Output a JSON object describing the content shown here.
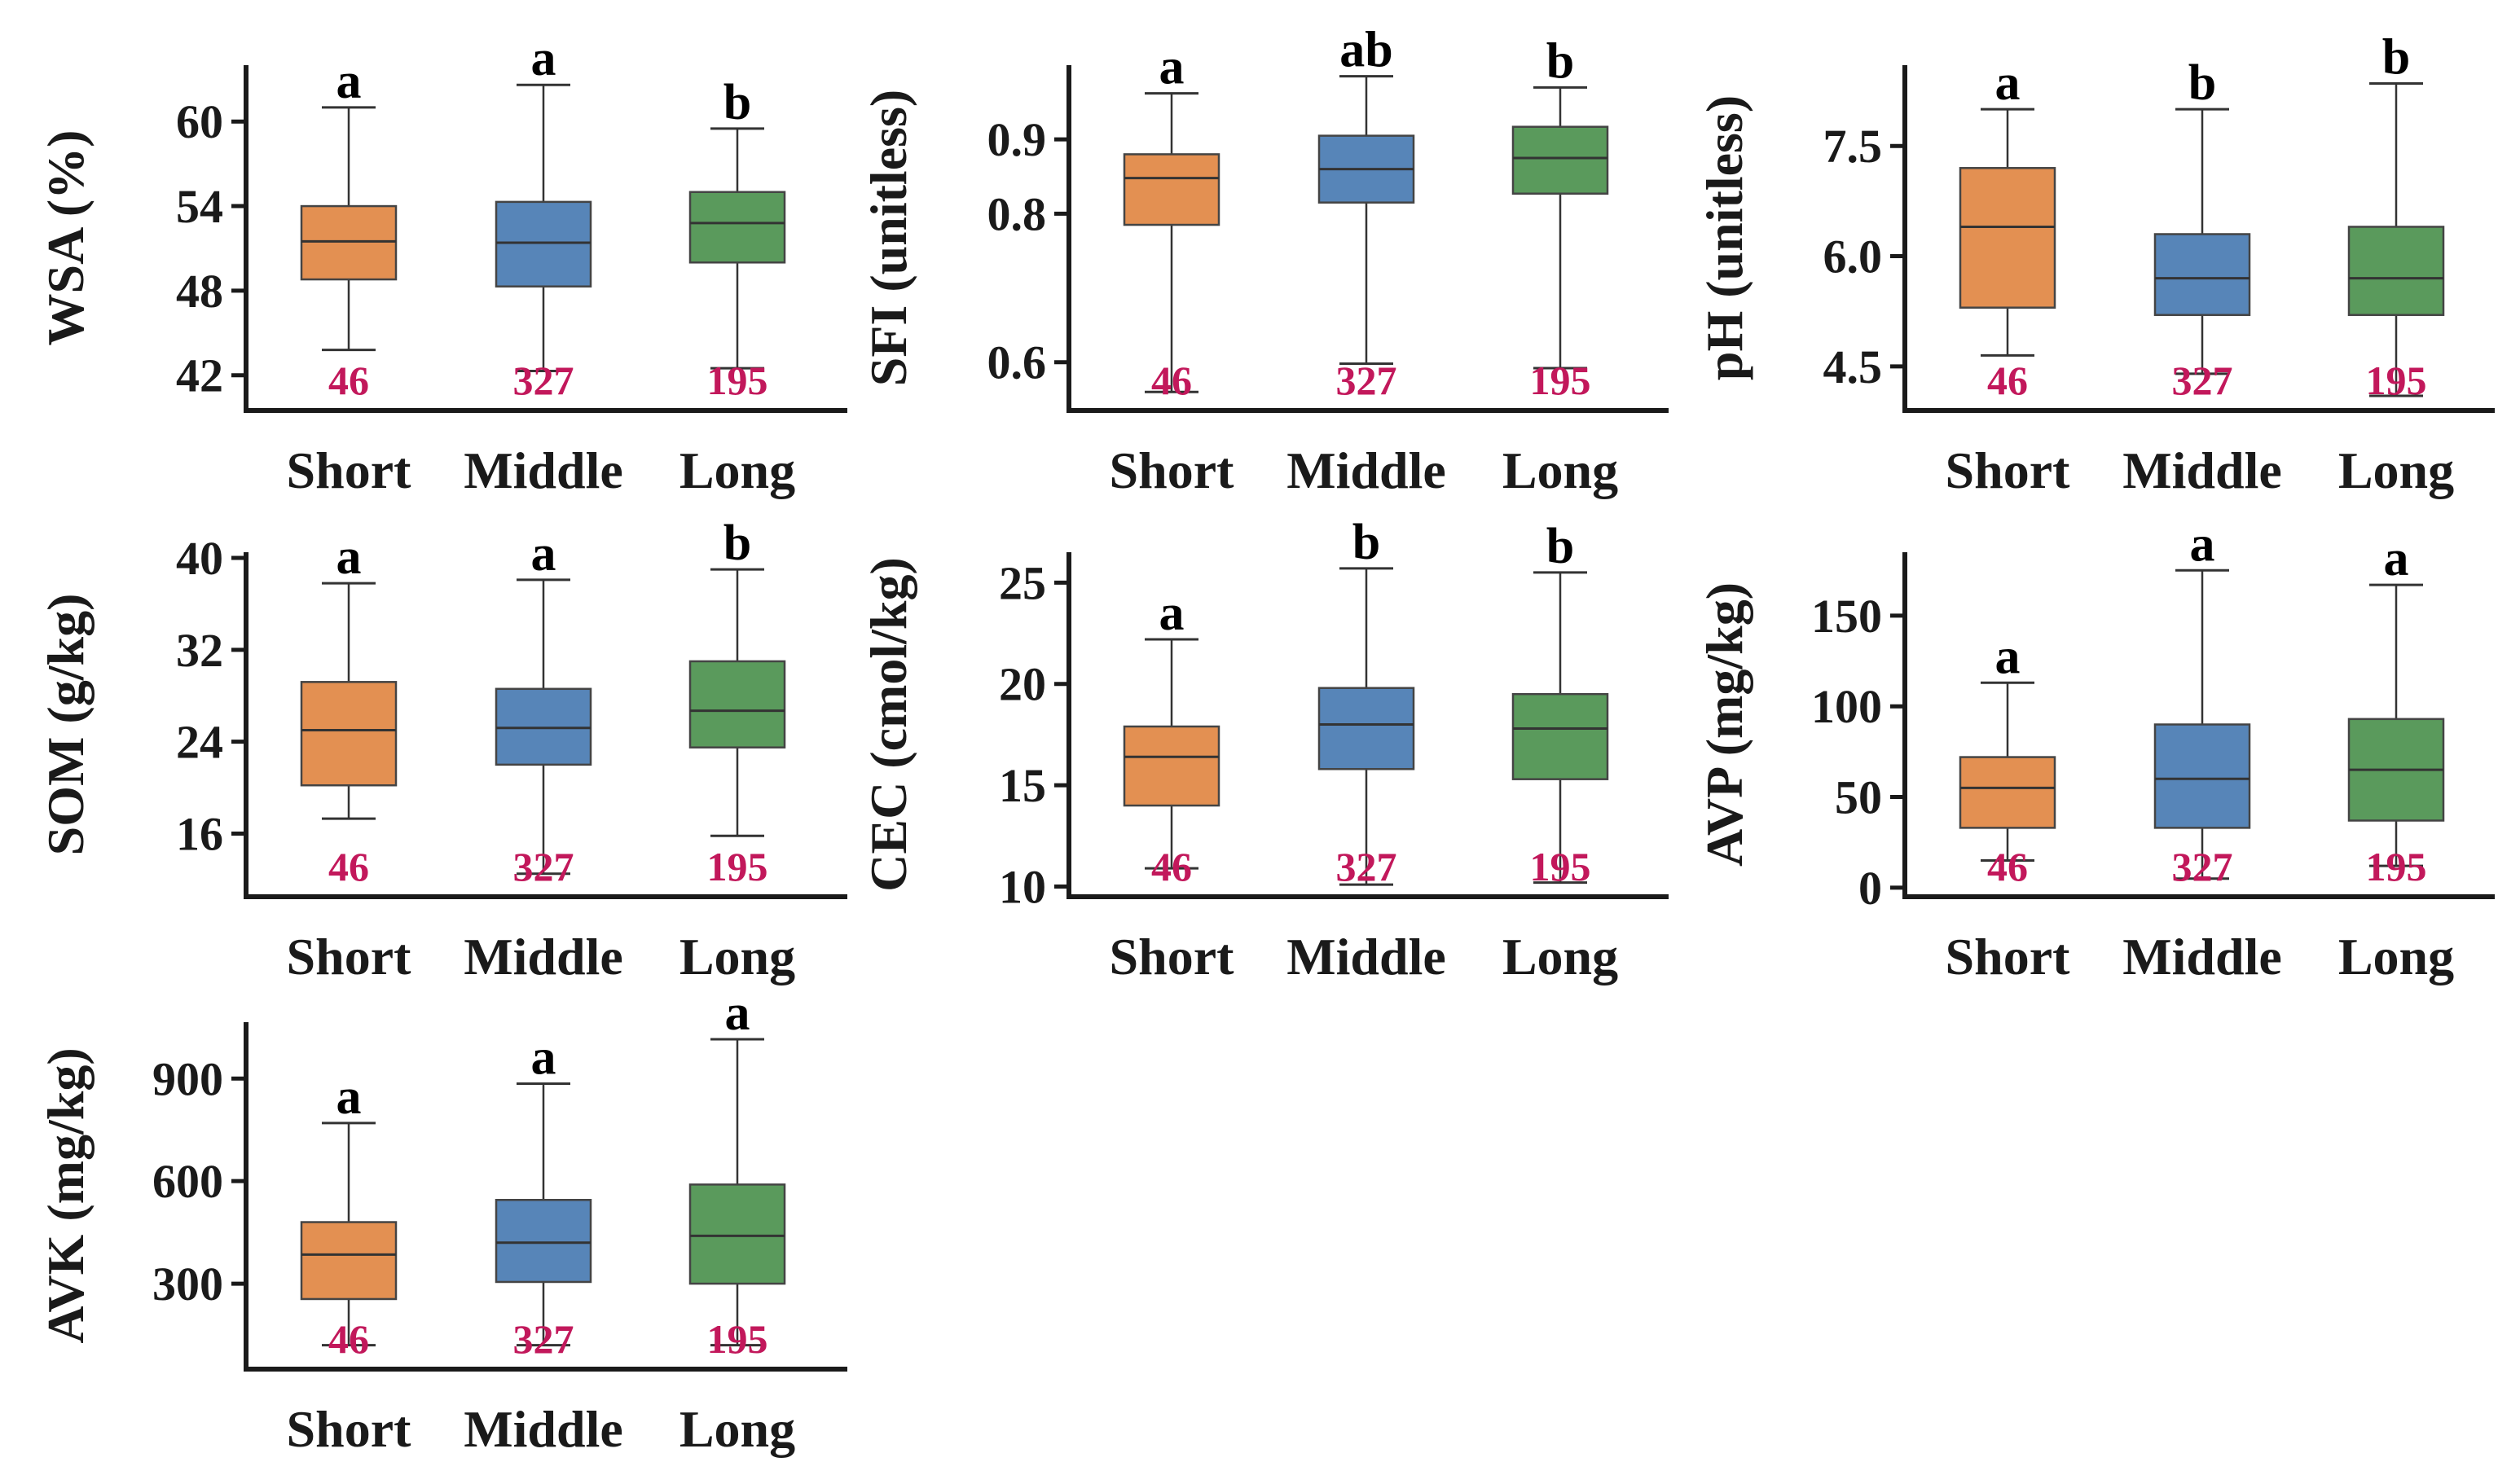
{
  "colors": {
    "Short": "#e39052",
    "Middle": "#5785b8",
    "Long": "#5a9a5c",
    "count": "#c2185b"
  },
  "chart_data": [
    {
      "type": "box",
      "ylabel": "WSA (%)",
      "ylim": [
        39.5,
        64
      ],
      "yticks": [
        42,
        48,
        54,
        60
      ],
      "categories": [
        "Short",
        "Middle",
        "Long"
      ],
      "boxes": [
        {
          "category": "Short",
          "whislo": 43.8,
          "q1": 48.8,
          "med": 51.5,
          "q3": 54.0,
          "whishi": 61.0,
          "n": "46",
          "letter": "a"
        },
        {
          "category": "Middle",
          "whislo": 42.3,
          "q1": 48.3,
          "med": 51.4,
          "q3": 54.3,
          "whishi": 62.6,
          "n": "327",
          "letter": "a"
        },
        {
          "category": "Long",
          "whislo": 42.5,
          "q1": 50.0,
          "med": 52.8,
          "q3": 55.0,
          "whishi": 59.5,
          "n": "195",
          "letter": "b"
        }
      ]
    },
    {
      "type": "box",
      "ylabel": "SFI (unitless)",
      "ylim": [
        0.535,
        1.0
      ],
      "yticks": [
        0.6,
        0.8,
        0.9
      ],
      "categories": [
        "Short",
        "Middle",
        "Long"
      ],
      "boxes": [
        {
          "category": "Short",
          "whislo": 0.56,
          "q1": 0.785,
          "med": 0.848,
          "q3": 0.88,
          "whishi": 0.962,
          "n": "46",
          "letter": "a"
        },
        {
          "category": "Middle",
          "whislo": 0.598,
          "q1": 0.815,
          "med": 0.86,
          "q3": 0.905,
          "whishi": 0.985,
          "n": "327",
          "letter": "ab"
        },
        {
          "category": "Long",
          "whislo": 0.592,
          "q1": 0.827,
          "med": 0.875,
          "q3": 0.917,
          "whishi": 0.97,
          "n": "195",
          "letter": "b"
        }
      ]
    },
    {
      "type": "box",
      "ylabel": "pH (unitless)",
      "ylim": [
        3.9,
        8.6
      ],
      "yticks": [
        4.5,
        6.0,
        7.5
      ],
      "categories": [
        "Short",
        "Middle",
        "Long"
      ],
      "boxes": [
        {
          "category": "Short",
          "whislo": 4.65,
          "q1": 5.3,
          "med": 6.4,
          "q3": 7.2,
          "whishi": 8.0,
          "n": "46",
          "letter": "a"
        },
        {
          "category": "Middle",
          "whislo": 4.4,
          "q1": 5.2,
          "med": 5.7,
          "q3": 6.3,
          "whishi": 8.0,
          "n": "327",
          "letter": "b"
        },
        {
          "category": "Long",
          "whislo": 4.1,
          "q1": 5.2,
          "med": 5.7,
          "q3": 6.4,
          "whishi": 8.35,
          "n": "195",
          "letter": "b"
        }
      ]
    },
    {
      "type": "box",
      "ylabel": "SOM (g/kg)",
      "ylim": [
        10.5,
        40.5
      ],
      "yticks": [
        16,
        24,
        32,
        40
      ],
      "categories": [
        "Short",
        "Middle",
        "Long"
      ],
      "boxes": [
        {
          "category": "Short",
          "whislo": 17.3,
          "q1": 20.2,
          "med": 25.0,
          "q3": 29.2,
          "whishi": 37.8,
          "n": "46",
          "letter": "a"
        },
        {
          "category": "Middle",
          "whislo": 12.5,
          "q1": 22.0,
          "med": 25.2,
          "q3": 28.6,
          "whishi": 38.1,
          "n": "327",
          "letter": "a"
        },
        {
          "category": "Long",
          "whislo": 15.8,
          "q1": 23.5,
          "med": 26.7,
          "q3": 31.0,
          "whishi": 39.0,
          "n": "195",
          "letter": "b"
        }
      ]
    },
    {
      "type": "box",
      "ylabel": "CEC (cmol/kg)",
      "ylim": [
        9.5,
        26.5
      ],
      "yticks": [
        10,
        15,
        20,
        25
      ],
      "categories": [
        "Short",
        "Middle",
        "Long"
      ],
      "boxes": [
        {
          "category": "Short",
          "whislo": 10.9,
          "q1": 14.0,
          "med": 16.4,
          "q3": 17.9,
          "whishi": 22.2,
          "n": "46",
          "letter": "a"
        },
        {
          "category": "Middle",
          "whislo": 10.1,
          "q1": 15.8,
          "med": 18.0,
          "q3": 19.8,
          "whishi": 25.7,
          "n": "327",
          "letter": "b"
        },
        {
          "category": "Long",
          "whislo": 10.2,
          "q1": 15.3,
          "med": 17.8,
          "q3": 19.5,
          "whishi": 25.5,
          "n": "195",
          "letter": "b"
        }
      ]
    },
    {
      "type": "box",
      "ylabel": "AVP (mg/kg)",
      "ylim": [
        -5,
        185
      ],
      "yticks": [
        0,
        50,
        100,
        150
      ],
      "categories": [
        "Short",
        "Middle",
        "Long"
      ],
      "boxes": [
        {
          "category": "Short",
          "whislo": 15,
          "q1": 33,
          "med": 55,
          "q3": 72,
          "whishi": 113,
          "n": "46",
          "letter": "a"
        },
        {
          "category": "Middle",
          "whislo": 5,
          "q1": 33,
          "med": 60,
          "q3": 90,
          "whishi": 175,
          "n": "327",
          "letter": "a"
        },
        {
          "category": "Long",
          "whislo": 12,
          "q1": 37,
          "med": 65,
          "q3": 93,
          "whishi": 167,
          "n": "195",
          "letter": "a"
        }
      ]
    },
    {
      "type": "box",
      "ylabel": "AVK (mg/kg)",
      "ylim": [
        50,
        1065
      ],
      "yticks": [
        300,
        600,
        900
      ],
      "categories": [
        "Short",
        "Middle",
        "Long"
      ],
      "boxes": [
        {
          "category": "Short",
          "whislo": 120,
          "q1": 255,
          "med": 385,
          "q3": 480,
          "whishi": 770,
          "n": "46",
          "letter": "a"
        },
        {
          "category": "Middle",
          "whislo": 120,
          "q1": 305,
          "med": 420,
          "q3": 545,
          "whishi": 885,
          "n": "327",
          "letter": "a"
        },
        {
          "category": "Long",
          "whislo": 120,
          "q1": 300,
          "med": 440,
          "q3": 590,
          "whishi": 1015,
          "n": "195",
          "letter": "a"
        }
      ]
    }
  ]
}
